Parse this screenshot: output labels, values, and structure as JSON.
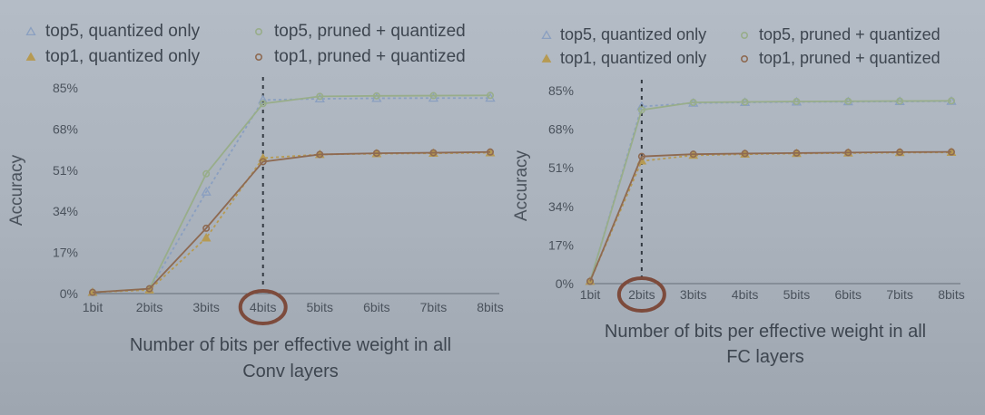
{
  "colors": {
    "top5_quantized_only": "#8a9fc0",
    "top1_quantized_only": "#b69a52",
    "top5_pruned_quantized": "#98ad8a",
    "top1_pruned_quantized": "#8e6a52",
    "annotation_circle": "#7d4b3c",
    "axis": "#656e78"
  },
  "chart_data": [
    {
      "type": "line",
      "categories": [
        "1bit",
        "2bits",
        "3bits",
        "4bits",
        "5bits",
        "6bits",
        "7bits",
        "8bits"
      ],
      "ylabel": "Accuracy",
      "xlabel_lines": [
        "Number of bits per effective weight in all",
        "Conv layers"
      ],
      "yticks": [
        "0%",
        "17%",
        "34%",
        "51%",
        "68%",
        "85%"
      ],
      "ylim": [
        0,
        85
      ],
      "highlight_category": "4bits",
      "legend": [
        {
          "label": "top5, quantized only",
          "marker": "triangle-open"
        },
        {
          "label": "top5, pruned + quantized",
          "marker": "circle-open"
        },
        {
          "label": "top1, quantized only",
          "marker": "triangle-filled"
        },
        {
          "label": "top1, pruned + quantized",
          "marker": "circle-open"
        }
      ],
      "series": [
        {
          "name": "top5, quantized only",
          "values": [
            0.5,
            1.5,
            42,
            80,
            80.5,
            80.7,
            80.8,
            80.8
          ]
        },
        {
          "name": "top1, quantized only",
          "values": [
            0.5,
            1.5,
            23,
            56,
            57.5,
            57.8,
            58,
            58.2
          ]
        },
        {
          "name": "top5, pruned + quantized",
          "values": [
            0.5,
            2,
            49.5,
            78.5,
            81.5,
            81.7,
            81.8,
            81.9
          ]
        },
        {
          "name": "top1, pruned + quantized",
          "values": [
            0.5,
            2,
            27,
            54.5,
            57.5,
            58,
            58.2,
            58.5
          ]
        }
      ]
    },
    {
      "type": "line",
      "categories": [
        "1bit",
        "2bits",
        "3bits",
        "4bits",
        "5bits",
        "6bits",
        "7bits",
        "8bits"
      ],
      "ylabel": "Accuracy",
      "xlabel_lines": [
        "Number of bits per effective weight in all",
        "FC layers"
      ],
      "yticks": [
        "0%",
        "17%",
        "34%",
        "51%",
        "68%",
        "85%"
      ],
      "ylim": [
        0,
        85
      ],
      "highlight_category": "2bits",
      "legend": [
        {
          "label": "top5, quantized only",
          "marker": "triangle-open"
        },
        {
          "label": "top5, pruned + quantized",
          "marker": "circle-open"
        },
        {
          "label": "top1, quantized only",
          "marker": "triangle-filled"
        },
        {
          "label": "top1, pruned + quantized",
          "marker": "circle-open"
        }
      ],
      "series": [
        {
          "name": "top5, quantized only",
          "values": [
            1,
            78,
            79.5,
            79.8,
            80,
            80.1,
            80.2,
            80.3
          ]
        },
        {
          "name": "top1, quantized only",
          "values": [
            1,
            54,
            56.5,
            57,
            57.3,
            57.5,
            57.7,
            57.8
          ]
        },
        {
          "name": "top5, pruned + quantized",
          "values": [
            1,
            76.5,
            79.8,
            80,
            80.2,
            80.3,
            80.4,
            80.5
          ]
        },
        {
          "name": "top1, pruned + quantized",
          "values": [
            1,
            56,
            57,
            57.3,
            57.5,
            57.7,
            57.9,
            58
          ]
        }
      ]
    }
  ]
}
